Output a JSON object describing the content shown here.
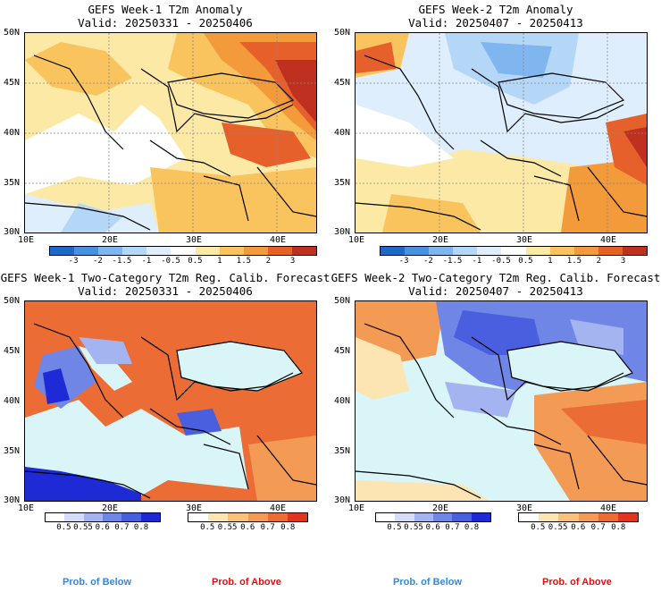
{
  "panels": [
    {
      "id": "p1",
      "title": "GEFS Week-1 T2m Anomaly",
      "valid": "Valid: 20250331 - 20250406"
    },
    {
      "id": "p2",
      "title": "GEFS Week-2 T2m Anomaly",
      "valid": "Valid: 20250407 - 20250413"
    },
    {
      "id": "p3",
      "title": "GEFS Week-1 Two-Category T2m Reg. Calib. Forecast",
      "valid": "Valid: 20250331 - 20250406"
    },
    {
      "id": "p4",
      "title": "GEFS Week-2 Two-Category T2m Reg. Calib. Forecast",
      "valid": "Valid: 20250407 - 20250413"
    }
  ],
  "axes": {
    "lat_labels": [
      "50N",
      "45N",
      "40N",
      "35N",
      "30N"
    ],
    "lon_labels": [
      "10E",
      "20E",
      "30E",
      "40E"
    ]
  },
  "anomaly_colorbar": {
    "labels": [
      "-3",
      "-2",
      "-1.5",
      "-1",
      "-0.5",
      "0.5",
      "1",
      "1.5",
      "2",
      "3"
    ],
    "colors": [
      "#2166c8",
      "#4b8fe0",
      "#80b6ef",
      "#b5d7f7",
      "#dfeefc",
      "#ffffff",
      "#fde9a6",
      "#f9c35e",
      "#f39a3a",
      "#e5602a",
      "#c03020"
    ]
  },
  "prob_below_colorbar": {
    "labels": [
      "0.5",
      "0.55",
      "0.6",
      "0.7",
      "0.8"
    ],
    "colors": [
      "#ffffff",
      "#d4dcf7",
      "#a4b4f0",
      "#7086e6",
      "#4a5ee0",
      "#1d2ad6"
    ]
  },
  "prob_above_colorbar": {
    "labels": [
      "0.5",
      "0.55",
      "0.6",
      "0.7",
      "0.8"
    ],
    "colors": [
      "#ffffff",
      "#fde4b3",
      "#f9c27c",
      "#f39a54",
      "#eb6c34",
      "#e2361c"
    ]
  },
  "legend_labels": {
    "below": "Prob. of Below",
    "above": "Prob. of Above",
    "below_color": "#3388dd",
    "above_color": "#dd1111"
  },
  "sea_color": "#d9f5f7"
}
